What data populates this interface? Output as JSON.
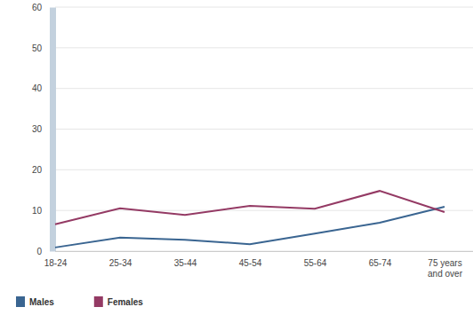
{
  "chart_data": {
    "type": "line",
    "categories": [
      "18-24",
      "25-34",
      "35-44",
      "45-54",
      "55-64",
      "65-74",
      "75 years and over"
    ],
    "series": [
      {
        "name": "Males",
        "color": "#3a6591",
        "values": [
          0.9,
          3.3,
          2.8,
          1.7,
          4.3,
          7.0,
          10.9
        ]
      },
      {
        "name": "Females",
        "color": "#943a64",
        "values": [
          6.6,
          10.5,
          8.9,
          11.1,
          10.4,
          14.8,
          9.6
        ]
      }
    ],
    "ylim": [
      0,
      60
    ],
    "yticks": [
      0,
      10,
      20,
      30,
      40,
      50,
      60
    ],
    "grid": true,
    "legend": "bottom left"
  }
}
